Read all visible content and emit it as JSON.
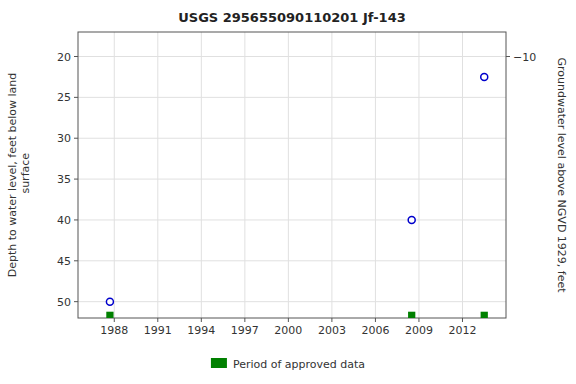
{
  "chart_data": {
    "type": "scatter",
    "title": "USGS 295655090110201 Jf-143",
    "ylabel": "Depth to water level, feet below land\n surface",
    "y2label": "Groundwater level above NGVD 1929, feet",
    "series": [
      {
        "type": "scatter",
        "color": "#0000cc",
        "marker": "circle",
        "x": [
          1987.7,
          2008.5,
          2013.5
        ],
        "values": [
          50.0,
          40.0,
          22.5
        ]
      },
      {
        "name": "Period of approved data",
        "type": "bar",
        "color": "#008000",
        "x": [
          1987.7,
          2008.5,
          2013.5
        ]
      }
    ],
    "xlim": [
      1985.5,
      2015.0
    ],
    "xticks": [
      1988,
      1991,
      1994,
      1997,
      2000,
      2003,
      2006,
      2009,
      2012
    ],
    "ylim": [
      52,
      17
    ],
    "yticks": [
      20,
      25,
      30,
      35,
      40,
      45,
      50
    ],
    "y2lim": [
      22,
      -13
    ],
    "y2ticks": [
      {
        "value": -10,
        "label": "−10"
      }
    ],
    "grid": true,
    "legend": "bottom"
  }
}
